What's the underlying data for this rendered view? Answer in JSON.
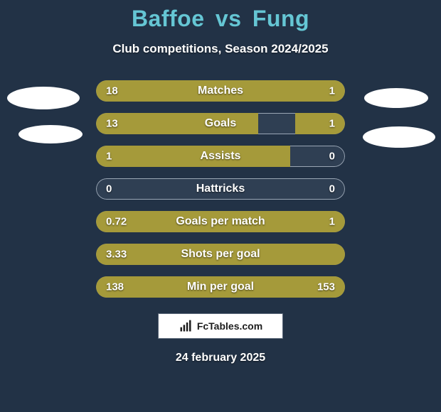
{
  "background_color": "#223246",
  "title": {
    "player1": "Baffoe",
    "vs": "vs",
    "player2": "Fung",
    "color": "#65c6d4",
    "fontsize": 32
  },
  "subtitle": {
    "text": "Club competitions, Season 2024/2025",
    "color": "#ffffff",
    "fontsize": 17
  },
  "badges": {
    "left_color": "#ffffff",
    "right_color": "#ffffff"
  },
  "bars": {
    "track_color": "#2f3f53",
    "track_border": "#9aa6b5",
    "fill_left_color": "#a59a3a",
    "fill_right_color": "#a59a3a",
    "label_color": "#ffffff",
    "value_color": "#ffffff",
    "rows": [
      {
        "label": "Matches",
        "left_val": "18",
        "right_val": "1",
        "left_pct": 76,
        "right_pct": 24
      },
      {
        "label": "Goals",
        "left_val": "13",
        "right_val": "1",
        "left_pct": 65,
        "right_pct": 20
      },
      {
        "label": "Assists",
        "left_val": "1",
        "right_val": "0",
        "left_pct": 78,
        "right_pct": 0
      },
      {
        "label": "Hattricks",
        "left_val": "0",
        "right_val": "0",
        "left_pct": 0,
        "right_pct": 0
      },
      {
        "label": "Goals per match",
        "left_val": "0.72",
        "right_val": "1",
        "left_pct": 100,
        "right_pct": 0
      },
      {
        "label": "Shots per goal",
        "left_val": "3.33",
        "right_val": "",
        "left_pct": 100,
        "right_pct": 0
      },
      {
        "label": "Min per goal",
        "left_val": "138",
        "right_val": "153",
        "left_pct": 100,
        "right_pct": 0
      }
    ]
  },
  "footer": {
    "text": "FcTables.com",
    "box_bg": "#ffffff",
    "box_border": "#5a6778",
    "text_color": "#1d1d1d"
  },
  "date": {
    "text": "24 february 2025",
    "color": "#ffffff"
  }
}
